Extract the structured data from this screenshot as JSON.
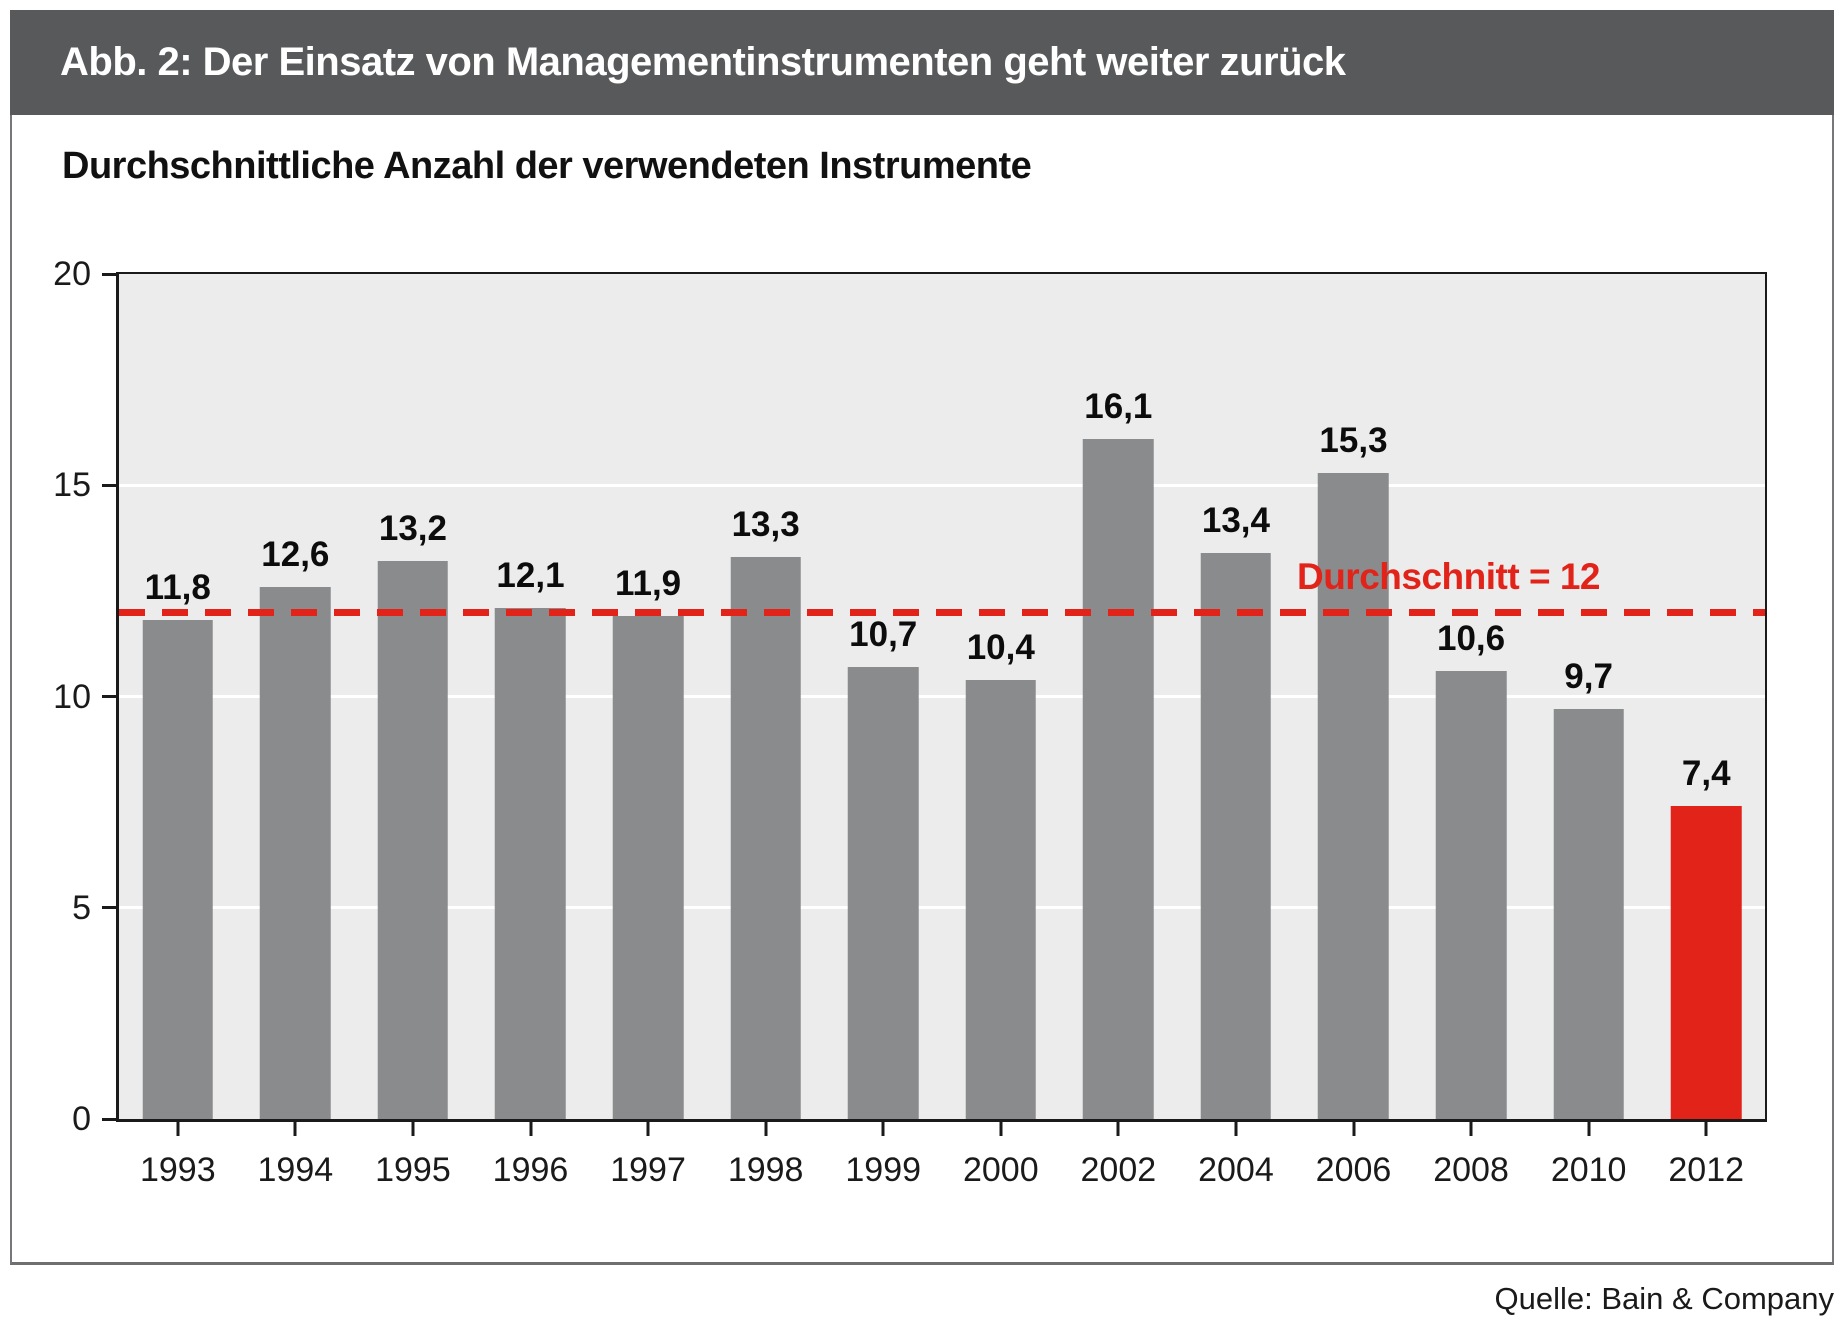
{
  "header": {
    "title": "Abb. 2: Der Einsatz von Managementinstrumenten geht weiter zurück",
    "background_color": "#58595b",
    "text_color": "#ffffff"
  },
  "subtitle": "Durchschnittliche Anzahl der verwendeten Instrumente",
  "source": "Quelle: Bain & Company",
  "chart_data": {
    "type": "bar",
    "title": "Abb. 2: Der Einsatz von Managementinstrumenten geht weiter zurück",
    "subtitle": "Durchschnittliche Anzahl der verwendeten Instrumente",
    "xlabel": "",
    "ylabel": "",
    "categories": [
      "1993",
      "1994",
      "1995",
      "1996",
      "1997",
      "1998",
      "1999",
      "2000",
      "2002",
      "2004",
      "2006",
      "2008",
      "2010",
      "2012"
    ],
    "values": [
      11.8,
      12.6,
      13.2,
      12.1,
      11.9,
      13.3,
      10.7,
      10.4,
      16.1,
      13.4,
      15.3,
      10.6,
      9.7,
      7.4
    ],
    "value_labels": [
      "11,8",
      "12,6",
      "13,2",
      "12,1",
      "11,9",
      "13,3",
      "10,7",
      "10,4",
      "16,1",
      "13,4",
      "15,3",
      "10,6",
      "9,7",
      "7,4"
    ],
    "ylim": [
      0,
      20
    ],
    "yticks": [
      0,
      5,
      10,
      15,
      20
    ],
    "gridlines": [
      5,
      10,
      15
    ],
    "grid_on": true,
    "legend": "none",
    "average_line": {
      "value": 12,
      "label": "Durchschnitt = 12"
    },
    "highlight_category": "2012",
    "colors": {
      "bar": "#8a8b8d",
      "highlight": "#e2231a",
      "average": "#e2231a",
      "plot_background": "#ebeceb",
      "gridline": "#ffffff"
    }
  }
}
